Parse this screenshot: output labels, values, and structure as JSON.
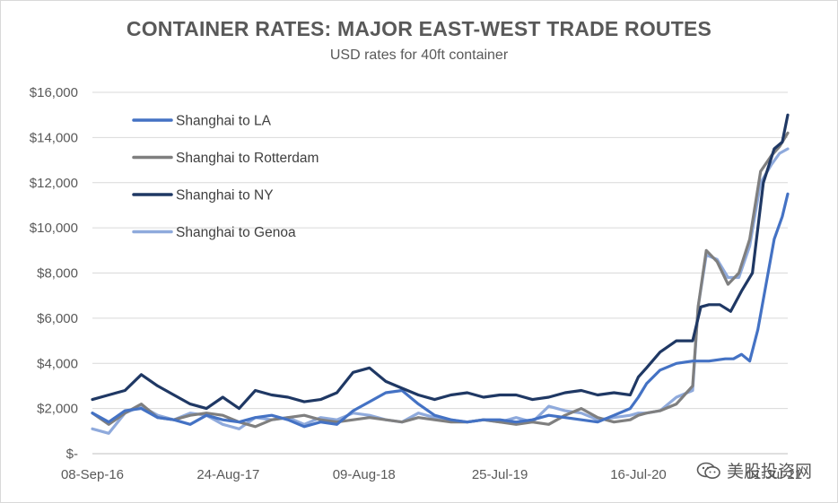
{
  "chart_data": {
    "type": "line",
    "title": "CONTAINER RATES: MAJOR EAST-WEST TRADE ROUTES",
    "subtitle": "USD rates for 40ft container",
    "xlabel": "",
    "ylabel": "",
    "ylim": [
      0,
      16000
    ],
    "y_ticks": [
      0,
      2000,
      4000,
      6000,
      8000,
      10000,
      12000,
      14000,
      16000
    ],
    "y_tick_labels": [
      "$-",
      "$2,000",
      "$4,000",
      "$6,000",
      "$8,000",
      "$10,000",
      "$12,000",
      "$14,000",
      "$16,000"
    ],
    "x_ticks": [
      "2016-09-08",
      "2017-08-24",
      "2018-08-09",
      "2019-07-25",
      "2020-07-16",
      "2021-07-01"
    ],
    "x_tick_labels": [
      "08-Sep-16",
      "24-Aug-17",
      "09-Aug-18",
      "25-Jul-19",
      "16-Jul-20",
      "01-Jul-21"
    ],
    "xlim": [
      "2016-09-08",
      "2021-08-05"
    ],
    "grid": true,
    "legend_position": "top-left",
    "series": [
      {
        "name": "Shanghai to LA",
        "color": "#4472c4",
        "x": [
          "2016-09-08",
          "2016-10-20",
          "2016-12-01",
          "2017-01-12",
          "2017-02-23",
          "2017-04-06",
          "2017-05-18",
          "2017-06-29",
          "2017-08-10",
          "2017-09-21",
          "2017-11-02",
          "2017-12-14",
          "2018-01-25",
          "2018-03-08",
          "2018-04-19",
          "2018-05-31",
          "2018-07-12",
          "2018-08-23",
          "2018-10-04",
          "2018-11-15",
          "2018-12-27",
          "2019-02-07",
          "2019-03-21",
          "2019-05-02",
          "2019-06-13",
          "2019-07-25",
          "2019-09-05",
          "2019-10-17",
          "2019-11-28",
          "2020-01-09",
          "2020-02-20",
          "2020-04-02",
          "2020-05-14",
          "2020-06-25",
          "2020-07-16",
          "2020-08-06",
          "2020-09-10",
          "2020-10-22",
          "2020-12-03",
          "2021-01-14",
          "2021-02-25",
          "2021-03-18",
          "2021-04-08",
          "2021-04-29",
          "2021-05-20",
          "2021-06-10",
          "2021-07-01",
          "2021-07-22",
          "2021-08-05"
        ],
        "values": [
          1800,
          1400,
          1900,
          2000,
          1600,
          1500,
          1300,
          1700,
          1500,
          1400,
          1600,
          1700,
          1500,
          1200,
          1400,
          1300,
          1900,
          2300,
          2700,
          2800,
          2200,
          1700,
          1500,
          1400,
          1500,
          1500,
          1400,
          1500,
          1700,
          1600,
          1500,
          1400,
          1700,
          2000,
          2500,
          3100,
          3700,
          4000,
          4100,
          4100,
          4200,
          4200,
          4400,
          4100,
          5500,
          7500,
          9500,
          10500,
          11500
        ]
      },
      {
        "name": "Shanghai to Rotterdam",
        "color": "#7f7f7f",
        "x": [
          "2016-09-08",
          "2016-10-20",
          "2016-12-01",
          "2017-01-12",
          "2017-02-23",
          "2017-04-06",
          "2017-05-18",
          "2017-06-29",
          "2017-08-10",
          "2017-09-21",
          "2017-11-02",
          "2017-12-14",
          "2018-01-25",
          "2018-03-08",
          "2018-04-19",
          "2018-05-31",
          "2018-07-12",
          "2018-08-23",
          "2018-10-04",
          "2018-11-15",
          "2018-12-27",
          "2019-02-07",
          "2019-03-21",
          "2019-05-02",
          "2019-06-13",
          "2019-07-25",
          "2019-09-05",
          "2019-10-17",
          "2019-11-28",
          "2020-01-09",
          "2020-02-20",
          "2020-04-02",
          "2020-05-14",
          "2020-06-25",
          "2020-07-16",
          "2020-08-06",
          "2020-09-10",
          "2020-10-22",
          "2020-12-03",
          "2020-12-17",
          "2021-01-07",
          "2021-02-04",
          "2021-03-04",
          "2021-04-01",
          "2021-04-29",
          "2021-05-27",
          "2021-06-24",
          "2021-07-15",
          "2021-08-05"
        ],
        "values": [
          1800,
          1300,
          1800,
          2200,
          1600,
          1500,
          1700,
          1800,
          1700,
          1400,
          1200,
          1500,
          1600,
          1700,
          1500,
          1400,
          1500,
          1600,
          1500,
          1400,
          1600,
          1500,
          1400,
          1400,
          1500,
          1400,
          1300,
          1400,
          1300,
          1700,
          2000,
          1600,
          1400,
          1500,
          1700,
          1800,
          1900,
          2200,
          3000,
          6500,
          9000,
          8500,
          7500,
          8000,
          9500,
          12500,
          13200,
          13600,
          14200
        ]
      },
      {
        "name": "Shanghai to NY",
        "color": "#1f3864",
        "x": [
          "2016-09-08",
          "2016-10-20",
          "2016-12-01",
          "2017-01-12",
          "2017-02-23",
          "2017-04-06",
          "2017-05-18",
          "2017-06-29",
          "2017-08-10",
          "2017-09-21",
          "2017-11-02",
          "2017-12-14",
          "2018-01-25",
          "2018-03-08",
          "2018-04-19",
          "2018-05-31",
          "2018-07-12",
          "2018-08-23",
          "2018-10-04",
          "2018-11-15",
          "2018-12-27",
          "2019-02-07",
          "2019-03-21",
          "2019-05-02",
          "2019-06-13",
          "2019-07-25",
          "2019-09-05",
          "2019-10-17",
          "2019-11-28",
          "2020-01-09",
          "2020-02-20",
          "2020-04-02",
          "2020-05-14",
          "2020-06-25",
          "2020-07-16",
          "2020-08-06",
          "2020-09-10",
          "2020-10-22",
          "2020-12-03",
          "2020-12-24",
          "2021-01-14",
          "2021-02-11",
          "2021-03-11",
          "2021-04-08",
          "2021-05-06",
          "2021-06-03",
          "2021-07-01",
          "2021-07-22",
          "2021-08-05"
        ],
        "values": [
          2400,
          2600,
          2800,
          3500,
          3000,
          2600,
          2200,
          2000,
          2500,
          2000,
          2800,
          2600,
          2500,
          2300,
          2400,
          2700,
          3600,
          3800,
          3200,
          2900,
          2600,
          2400,
          2600,
          2700,
          2500,
          2600,
          2600,
          2400,
          2500,
          2700,
          2800,
          2600,
          2700,
          2600,
          3400,
          3800,
          4500,
          5000,
          5000,
          6500,
          6600,
          6600,
          6300,
          7200,
          8000,
          12000,
          13500,
          13800,
          15000
        ]
      },
      {
        "name": "Shanghai to Genoa",
        "color": "#8faadc",
        "x": [
          "2016-09-08",
          "2016-10-20",
          "2016-12-01",
          "2017-01-12",
          "2017-02-23",
          "2017-04-06",
          "2017-05-18",
          "2017-06-29",
          "2017-08-10",
          "2017-09-21",
          "2017-11-02",
          "2017-12-14",
          "2018-01-25",
          "2018-03-08",
          "2018-04-19",
          "2018-05-31",
          "2018-07-12",
          "2018-08-23",
          "2018-10-04",
          "2018-11-15",
          "2018-12-27",
          "2019-02-07",
          "2019-03-21",
          "2019-05-02",
          "2019-06-13",
          "2019-07-25",
          "2019-09-05",
          "2019-10-17",
          "2019-11-28",
          "2020-01-09",
          "2020-02-20",
          "2020-04-02",
          "2020-05-14",
          "2020-06-25",
          "2020-07-16",
          "2020-08-06",
          "2020-09-10",
          "2020-10-22",
          "2020-12-03",
          "2020-12-17",
          "2021-01-07",
          "2021-02-04",
          "2021-03-04",
          "2021-04-01",
          "2021-04-29",
          "2021-05-27",
          "2021-06-24",
          "2021-07-15",
          "2021-08-05"
        ],
        "values": [
          1100,
          900,
          1800,
          2100,
          1700,
          1500,
          1800,
          1700,
          1300,
          1100,
          1600,
          1500,
          1600,
          1300,
          1600,
          1500,
          1800,
          1700,
          1500,
          1400,
          1800,
          1600,
          1500,
          1400,
          1500,
          1400,
          1600,
          1400,
          2100,
          1900,
          1800,
          1500,
          1600,
          1700,
          1800,
          1800,
          1900,
          2500,
          2800,
          6500,
          8800,
          8600,
          7800,
          7800,
          9200,
          12000,
          12800,
          13300,
          13500
        ]
      }
    ]
  },
  "watermark": {
    "text": "美股投资网",
    "icon": "wechat-icon"
  }
}
